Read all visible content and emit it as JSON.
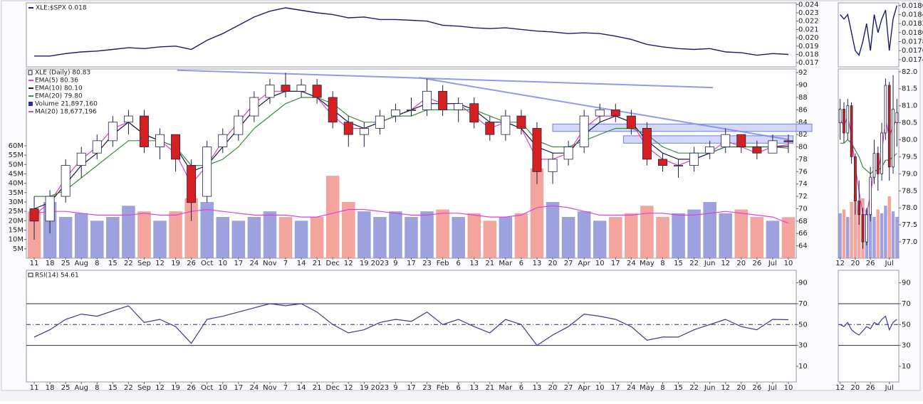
{
  "chart_data": [
    {
      "type": "candlestick",
      "categories": [
        "11",
        "18",
        "25",
        "Aug",
        "8",
        "15",
        "22",
        "Sep",
        "12",
        "19",
        "26",
        "Oct",
        "10",
        "17",
        "24",
        "Nov",
        "7",
        "14",
        "21",
        "Dec",
        "12",
        "19",
        "2023",
        "9",
        "17",
        "23",
        "Feb",
        "6",
        "13",
        "21",
        "Mar",
        "6",
        "13",
        "20",
        "27",
        "Apr",
        "10",
        "17",
        "24",
        "May",
        "8",
        "15",
        "22",
        "Jun",
        "12",
        "20",
        "26",
        "Jul",
        "10"
      ],
      "ratio": {
        "legend": "XLE:$SPX 0.018",
        "color": "#1c1c6e",
        "values": [
          0.0178,
          0.0178,
          0.0181,
          0.0183,
          0.0184,
          0.0186,
          0.0188,
          0.0187,
          0.0189,
          0.019,
          0.0186,
          0.0197,
          0.0205,
          0.0215,
          0.0225,
          0.0232,
          0.0236,
          0.0233,
          0.023,
          0.0228,
          0.0224,
          0.0225,
          0.0222,
          0.0222,
          0.0221,
          0.022,
          0.0215,
          0.0214,
          0.0212,
          0.0211,
          0.0212,
          0.021,
          0.0208,
          0.0207,
          0.0205,
          0.0206,
          0.0205,
          0.0202,
          0.0198,
          0.0192,
          0.0189,
          0.0187,
          0.0186,
          0.0187,
          0.0183,
          0.0182,
          0.0179,
          0.0181,
          0.018
        ],
        "ylim": [
          0.0165,
          0.0242
        ],
        "yticks": [
          0.017,
          0.018,
          0.019,
          {
            "value": 0.02,
            "label": "0.020"
          },
          0.021,
          0.022,
          0.023,
          0.024
        ]
      },
      "price": {
        "legend": "XLE (Daily) 80.83",
        "up_color": "#ffffff",
        "down_color": "#d42020",
        "wick_color": "#222244",
        "open": [
          70,
          68,
          72,
          77,
          79,
          81,
          84,
          85,
          80,
          82,
          77,
          72,
          80,
          82,
          85,
          88,
          90,
          89,
          90,
          88,
          84,
          82,
          83,
          85,
          86,
          86,
          89,
          86,
          87,
          84,
          82,
          85,
          83,
          76,
          78,
          80,
          85,
          86,
          85,
          83,
          78,
          77,
          77,
          79,
          80,
          82,
          80,
          79,
          81
        ],
        "high": [
          72,
          73,
          78,
          80,
          82,
          85,
          86,
          86,
          83,
          82,
          78,
          81,
          83,
          86,
          89,
          91,
          92,
          91,
          91,
          89,
          85,
          84,
          86,
          87,
          88,
          91,
          90,
          88,
          88,
          85,
          86,
          86,
          84,
          79,
          81,
          86,
          87,
          87,
          86,
          84,
          79,
          78,
          80,
          81,
          83,
          82,
          81,
          82,
          82
        ],
        "low": [
          65,
          66,
          71,
          75,
          78,
          80,
          82,
          79,
          78,
          76,
          68,
          71,
          79,
          81,
          84,
          87,
          88,
          88,
          87,
          83,
          80,
          80,
          82,
          84,
          85,
          85,
          85,
          84,
          83,
          81,
          81,
          82,
          74,
          74,
          77,
          79,
          84,
          84,
          82,
          77,
          76,
          75,
          76,
          78,
          79,
          79,
          78,
          79,
          79
        ],
        "close": [
          68,
          72,
          77,
          79,
          81,
          84,
          85,
          80,
          82,
          78,
          71,
          80,
          82,
          85,
          88,
          90,
          89,
          90,
          88,
          84,
          82,
          83,
          85,
          86,
          86,
          89,
          86,
          87,
          84,
          82,
          85,
          83,
          76,
          78,
          80,
          85,
          86,
          85,
          83,
          78,
          77,
          77,
          79,
          80,
          82,
          80,
          79,
          81,
          80.83
        ],
        "ylim": [
          62,
          92.6
        ],
        "yticks": [
          64,
          66,
          68,
          70,
          72,
          74,
          76,
          78,
          80,
          82,
          84,
          86,
          88,
          90,
          92
        ],
        "series": [
          {
            "name": "EMA(5) 80.36",
            "color": "#e040c0",
            "values": [
              69,
              71,
              75,
              78,
              80,
              83,
              84,
              82,
              81,
              79,
              74,
              77,
              81,
              84,
              87,
              89,
              89,
              89,
              88,
              85,
              83,
              83,
              84,
              85,
              86,
              88,
              87,
              87,
              85,
              83,
              84,
              83,
              78,
              78,
              79,
              83,
              85,
              85,
              84,
              80,
              78,
              77,
              78,
              79,
              81,
              80,
              79,
              80,
              80.36
            ]
          },
          {
            "name": "EMA(10) 80.10",
            "color": "#1a1a40",
            "values": [
              70,
              71,
              74,
              77,
              79,
              82,
              84,
              82,
              81,
              80,
              76,
              77,
              80,
              83,
              86,
              88,
              89,
              89,
              88,
              86,
              84,
              83,
              84,
              85,
              86,
              87,
              87,
              87,
              86,
              84,
              84,
              83,
              80,
              79,
              79,
              82,
              84,
              85,
              84,
              81,
              79,
              78,
              78,
              79,
              80,
              80,
              80,
              80,
              80.1
            ]
          },
          {
            "name": "EMA(20) 79.80",
            "color": "#3c8c3c",
            "values": [
              72,
              72,
              73,
              75,
              77,
              79,
              81,
              81,
              81,
              80,
              77,
              77,
              78,
              80,
              83,
              85,
              87,
              88,
              88,
              87,
              85,
              84,
              84,
              85,
              85,
              86,
              86,
              86,
              86,
              85,
              84,
              84,
              81,
              80,
              80,
              81,
              82,
              83,
              83,
              82,
              80,
              79,
              79,
              79,
              80,
              80,
              80,
              80,
              79.8
            ]
          }
        ],
        "volume": {
          "name": "Volume 21,897,160",
          "color": "#2a2ab0",
          "up_color": "#8c90d8",
          "down_color": "#f0948c",
          "values": [
            25000000,
            30000000,
            22000000,
            24000000,
            20000000,
            22000000,
            28000000,
            25000000,
            20000000,
            25000000,
            32000000,
            30000000,
            22000000,
            20000000,
            22000000,
            25000000,
            22000000,
            20000000,
            22000000,
            44000000,
            30000000,
            25000000,
            22000000,
            25000000,
            22000000,
            25000000,
            26000000,
            22000000,
            24000000,
            20000000,
            22000000,
            24000000,
            48000000,
            30000000,
            22000000,
            25000000,
            20000000,
            22000000,
            24000000,
            28000000,
            22000000,
            24000000,
            26000000,
            30000000,
            24000000,
            26000000,
            22000000,
            20000000,
            21897160
          ],
          "ylim": [
            0,
            101000000
          ],
          "yticks": [
            {
              "value": 5000000,
              "label": "5M"
            },
            {
              "value": 10000000,
              "label": "10M"
            },
            {
              "value": 15000000,
              "label": "15M"
            },
            {
              "value": 20000000,
              "label": "20M"
            },
            {
              "value": 25000000,
              "label": "25M"
            },
            {
              "value": 30000000,
              "label": "30M"
            },
            {
              "value": 35000000,
              "label": "35M"
            },
            {
              "value": 40000000,
              "label": "40M"
            },
            {
              "value": 45000000,
              "label": "45M"
            },
            {
              "value": 50000000,
              "label": "50M"
            },
            {
              "value": 55000000,
              "label": "55M"
            },
            {
              "value": 60000000,
              "label": "60M"
            }
          ]
        },
        "volume_ma": {
          "name": "MA(20) 18,677,196",
          "color": "#e040e0",
          "values": [
            24000000,
            25000000,
            25000000,
            24000000,
            23000000,
            23000000,
            23000000,
            24000000,
            23000000,
            23000000,
            25000000,
            26000000,
            25000000,
            24000000,
            23000000,
            23000000,
            23000000,
            22000000,
            22000000,
            24000000,
            26000000,
            26000000,
            25000000,
            24000000,
            23000000,
            23000000,
            24000000,
            24000000,
            23000000,
            22000000,
            22000000,
            23000000,
            27000000,
            28000000,
            27000000,
            25000000,
            23000000,
            23000000,
            23000000,
            24000000,
            24000000,
            23000000,
            23000000,
            24000000,
            25000000,
            24000000,
            23000000,
            22000000,
            18677196
          ]
        },
        "trendlines": [
          {
            "x": [
              9.6,
              43.7
            ],
            "y": [
              92.4,
              89.6
            ]
          },
          {
            "x": [
              25,
              48.5
            ],
            "y": [
              91.2,
              81.2
            ]
          }
        ],
        "zones": [
          {
            "x": [
              33.5,
              50
            ],
            "y": [
              82.5,
              83.7
            ]
          },
          {
            "x": [
              38,
              48.8
            ],
            "y": [
              80.6,
              81.8
            ]
          }
        ]
      },
      "rsi": {
        "legend": "RSI(14) 54.61",
        "color": "#3a3a90",
        "values": [
          38,
          45,
          55,
          60,
          58,
          63,
          68,
          52,
          55,
          48,
          32,
          55,
          58,
          62,
          66,
          70,
          68,
          70,
          62,
          50,
          42,
          45,
          52,
          55,
          53,
          62,
          50,
          55,
          48,
          42,
          55,
          50,
          30,
          40,
          48,
          60,
          58,
          55,
          48,
          35,
          38,
          38,
          45,
          50,
          55,
          48,
          45,
          55,
          54.61
        ],
        "ylim": [
          -5,
          102
        ],
        "yticks": [
          10,
          30,
          50,
          70,
          90
        ],
        "reference_lines": [
          30,
          50,
          70
        ]
      }
    },
    {
      "type": "candlestick",
      "categories": [
        "12",
        null,
        null,
        null,
        "20",
        null,
        null,
        null,
        "26",
        null,
        null,
        null,
        null,
        "Jul",
        null,
        null
      ],
      "ratio": {
        "color": "#1c1c6e",
        "values": [
          0.0184,
          0.0183,
          0.0184,
          0.018,
          0.0176,
          0.0175,
          0.0178,
          0.0182,
          0.0176,
          0.0184,
          0.018,
          0.0183,
          0.0185,
          0.0176,
          0.0183,
          0.0186
        ],
        "ylim": [
          0.01724,
          0.01866
        ],
        "yticks": [
          0.0174,
          0.0176,
          0.0178,
          {
            "value": 0.018,
            "label": "0.0180"
          },
          0.0182,
          0.0184,
          0.0186
        ]
      },
      "price": {
        "up_color": "#ffffff",
        "down_color": "#d42020",
        "wick_color": "#222244",
        "open": [
          80.5,
          80.9,
          80.2,
          81,
          79.5,
          78.2,
          77.8,
          77,
          77.8,
          78.9,
          79.6,
          79,
          80.2,
          81.6,
          79.2,
          80.5
        ],
        "high": [
          81.2,
          81.1,
          81.2,
          81.1,
          79.6,
          78.8,
          78,
          78,
          79.2,
          80,
          79.8,
          80.5,
          81.8,
          81.7,
          81.9,
          81.2
        ],
        "low": [
          80,
          79.9,
          80,
          79.3,
          77.8,
          77.5,
          76.8,
          76.9,
          77.6,
          78.7,
          78.5,
          78.8,
          80,
          78.8,
          79,
          79.8
        ],
        "close": [
          80.9,
          80.2,
          81,
          79.5,
          78.2,
          77.8,
          77,
          77.8,
          78.9,
          79.6,
          79,
          80.2,
          81.6,
          79.2,
          80.9,
          80.8
        ],
        "ylim": [
          76.52,
          82.08
        ],
        "yticks": [
          {
            "value": 77,
            "label": "77.0"
          },
          77.5,
          {
            "value": 78,
            "label": "78.0"
          },
          78.5,
          {
            "value": 79,
            "label": "79.0"
          },
          79.5,
          {
            "value": 80,
            "label": "80.0"
          },
          80.5,
          {
            "value": 81,
            "label": "81.0"
          },
          81.5,
          {
            "value": 82,
            "label": "82.0"
          }
        ],
        "series": [
          {
            "color": "#e040c0",
            "values": [
              80.6,
              80.4,
              80.7,
              80.1,
              79.2,
              78.5,
              77.8,
              77.8,
              78.4,
              79.1,
              79.1,
              79.6,
              80.6,
              80.1,
              80.4,
              80.6
            ]
          },
          {
            "color": "#3c8c3c",
            "values": [
              79.9,
              79.9,
              80,
              79.9,
              79.7,
              79.5,
              79.2,
              79.1,
              79,
              79.1,
              79.1,
              79.2,
              79.4,
              79.4,
              79.5,
              79.6
            ]
          }
        ],
        "volume": {
          "up_color": "#8c90d8",
          "down_color": "#f0948c",
          "values": [
            24000000,
            26000000,
            22000000,
            30000000,
            34000000,
            28000000,
            32000000,
            26000000,
            24000000,
            22000000,
            26000000,
            24000000,
            28000000,
            33000000,
            25000000,
            22000000
          ],
          "ylim": [
            0,
            101000000
          ]
        }
      },
      "rsi": {
        "color": "#3a3a90",
        "values": [
          50,
          48,
          52,
          45,
          42,
          40,
          44,
          48,
          46,
          52,
          50,
          55,
          58,
          45,
          52,
          55
        ],
        "ylim": [
          -5,
          102
        ],
        "yticks": [
          10,
          30,
          50,
          70,
          90
        ],
        "reference_lines": [
          30,
          50,
          70
        ]
      }
    }
  ]
}
